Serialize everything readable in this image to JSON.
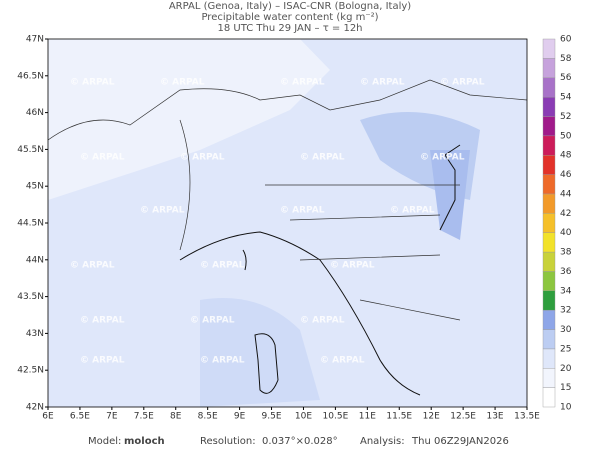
{
  "header": {
    "title": "ARPAL (Genoa, Italy)  –  ISAC-CNR (Bologna, Italy)",
    "subtitle": "Precipitable water content (kg m⁻²)",
    "time": "18 UTC Thu 29 JAN  –  τ = 12h"
  },
  "map": {
    "watermark": "© ARPAL",
    "lon_labels": [
      "6E",
      "6.5E",
      "7E",
      "7.5E",
      "8E",
      "8.5E",
      "9E",
      "9.5E",
      "10E",
      "10.5E",
      "11E",
      "11.5E",
      "12E",
      "12.5E",
      "13E",
      "13.5E"
    ],
    "lat_labels": [
      "42N",
      "42.5N",
      "43N",
      "43.5N",
      "44N",
      "44.5N",
      "45N",
      "45.5N",
      "46N",
      "46.5N",
      "47N"
    ]
  },
  "colorbar": {
    "labels": [
      10,
      15,
      20,
      25,
      30,
      32,
      34,
      36,
      38,
      40,
      42,
      44,
      46,
      48,
      50,
      52,
      54,
      56,
      58,
      60
    ],
    "colors": [
      "#ffffff",
      "#f2f5fd",
      "#dfe7fa",
      "#bccdf2",
      "#8ea6e8",
      "#2e9e3e",
      "#8cc63f",
      "#c8d23a",
      "#f2e22a",
      "#f5c02a",
      "#f29a2a",
      "#ee6a2a",
      "#e2322a",
      "#cc1c5a",
      "#a01a8a",
      "#8a3cb4",
      "#a872c8",
      "#c6a2dc",
      "#e0cdee"
    ]
  },
  "footer": {
    "model_label": "Model:",
    "model": "moloch",
    "resolution_label": "Resolution:",
    "resolution": "0.037°×0.028°",
    "analysis_label": "Analysis:",
    "analysis": "Thu 06Z29JAN2026"
  }
}
